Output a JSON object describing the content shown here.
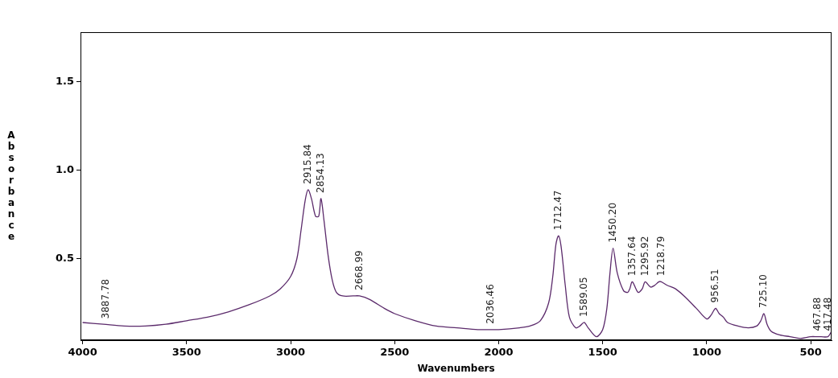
{
  "chart_data": {
    "type": "line",
    "x_label": "Wavenumbers",
    "y_label": "Absorbance",
    "color": "#5b2a6b",
    "grid": false,
    "xlim": [
      4010,
      400
    ],
    "ylim": [
      0.04,
      1.78
    ],
    "xticks": [
      4000,
      3500,
      3000,
      2500,
      2000,
      1500,
      1000,
      500
    ],
    "yticks": [
      {
        "value": 0.5,
        "label": "0.5"
      },
      {
        "value": 1,
        "label": "1.0"
      },
      {
        "value": 1.5,
        "label": "1.5"
      }
    ],
    "x": [
      4000,
      3900,
      3800,
      3700,
      3600,
      3500,
      3400,
      3300,
      3200,
      3100,
      3050,
      3000,
      2970,
      2950,
      2930,
      2915.84,
      2900,
      2880,
      2865,
      2854.13,
      2840,
      2820,
      2800,
      2780,
      2750,
      2700,
      2668.99,
      2620,
      2550,
      2500,
      2400,
      2300,
      2200,
      2100,
      2036.46,
      2000,
      1900,
      1850,
      1800,
      1760,
      1740,
      1725,
      1712.47,
      1700,
      1680,
      1660,
      1630,
      1610,
      1589.05,
      1570,
      1530,
      1500,
      1480,
      1465,
      1450.2,
      1430,
      1400,
      1380,
      1370,
      1357.64,
      1330,
      1310,
      1295.92,
      1270,
      1250,
      1230,
      1218.79,
      1190,
      1150,
      1100,
      1050,
      1000,
      980,
      965,
      956.51,
      940,
      920,
      900,
      850,
      800,
      760,
      740,
      725.1,
      710,
      690,
      650,
      600,
      550,
      500,
      467.88,
      450,
      417.48,
      400
    ],
    "values": [
      0.14,
      0.13,
      0.12,
      0.12,
      0.13,
      0.15,
      0.17,
      0.2,
      0.24,
      0.29,
      0.33,
      0.4,
      0.5,
      0.66,
      0.83,
      0.89,
      0.84,
      0.74,
      0.74,
      0.84,
      0.72,
      0.52,
      0.38,
      0.31,
      0.29,
      0.29,
      0.29,
      0.27,
      0.22,
      0.19,
      0.15,
      0.12,
      0.11,
      0.1,
      0.1,
      0.1,
      0.11,
      0.12,
      0.15,
      0.25,
      0.4,
      0.58,
      0.63,
      0.57,
      0.35,
      0.17,
      0.11,
      0.12,
      0.14,
      0.11,
      0.06,
      0.1,
      0.22,
      0.42,
      0.56,
      0.42,
      0.32,
      0.31,
      0.33,
      0.37,
      0.31,
      0.33,
      0.37,
      0.34,
      0.35,
      0.37,
      0.37,
      0.35,
      0.33,
      0.28,
      0.22,
      0.16,
      0.18,
      0.21,
      0.22,
      0.19,
      0.17,
      0.14,
      0.12,
      0.11,
      0.12,
      0.15,
      0.19,
      0.13,
      0.09,
      0.07,
      0.06,
      0.05,
      0.06,
      0.06,
      0.06,
      0.06,
      0.09
    ],
    "annotations": [
      {
        "x": 3887.78,
        "text": "3887.78"
      },
      {
        "x": 2915.84,
        "text": "2915.84"
      },
      {
        "x": 2854.13,
        "text": "2854.13"
      },
      {
        "x": 2668.99,
        "text": "2668.99"
      },
      {
        "x": 2036.46,
        "text": "2036.46"
      },
      {
        "x": 1712.47,
        "text": "1712.47"
      },
      {
        "x": 1589.05,
        "text": "1589.05"
      },
      {
        "x": 1450.2,
        "text": "1450.20"
      },
      {
        "x": 1357.64,
        "text": "1357.64"
      },
      {
        "x": 1295.92,
        "text": "1295.92"
      },
      {
        "x": 1218.79,
        "text": "1218.79"
      },
      {
        "x": 956.51,
        "text": "956.51"
      },
      {
        "x": 725.1,
        "text": "725.10"
      },
      {
        "x": 467.88,
        "text": "467.88"
      },
      {
        "x": 417.48,
        "text": "417.48"
      }
    ]
  }
}
